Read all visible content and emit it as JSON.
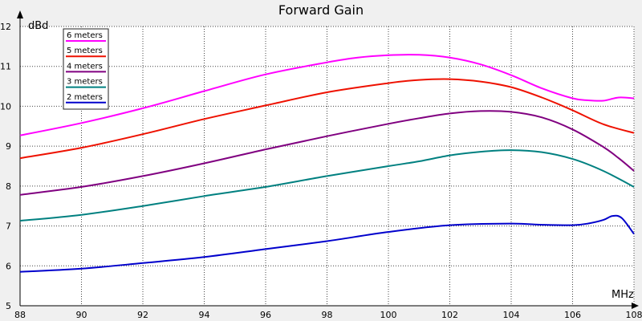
{
  "chart_data": {
    "type": "line",
    "title": "Forward Gain",
    "ylabel": "dBd",
    "xlabel": "MHz",
    "xlim": [
      88,
      108
    ],
    "ylim": [
      5,
      12
    ],
    "xticks": [
      88,
      90,
      92,
      94,
      96,
      98,
      100,
      102,
      104,
      106,
      108
    ],
    "yticks": [
      5,
      6,
      7,
      8,
      9,
      10,
      11,
      12
    ],
    "grid": true,
    "legend_position": "top-left",
    "series": [
      {
        "name": "6 meters",
        "color": "#ff00ff",
        "x": [
          88,
          90,
          92,
          94,
          96,
          98,
          99,
          100,
          101,
          102,
          103,
          104,
          105,
          106,
          106.5,
          107,
          107.5,
          108
        ],
        "y": [
          9.27,
          9.58,
          9.95,
          10.38,
          10.8,
          11.1,
          11.22,
          11.28,
          11.29,
          11.22,
          11.05,
          10.78,
          10.45,
          10.2,
          10.15,
          10.14,
          10.22,
          10.2
        ]
      },
      {
        "name": "5 meters",
        "color": "#ee1100",
        "x": [
          88,
          90,
          92,
          94,
          96,
          98,
          100,
          101,
          102,
          103,
          104,
          105,
          106,
          107,
          108
        ],
        "y": [
          8.7,
          8.96,
          9.3,
          9.68,
          10.02,
          10.35,
          10.58,
          10.66,
          10.68,
          10.62,
          10.48,
          10.22,
          9.9,
          9.55,
          9.33
        ]
      },
      {
        "name": "4 meters",
        "color": "#800080",
        "x": [
          88,
          90,
          92,
          94,
          96,
          98,
          100,
          101,
          102,
          103,
          104,
          105,
          106,
          107,
          107.5,
          108
        ],
        "y": [
          7.78,
          7.98,
          8.25,
          8.57,
          8.92,
          9.25,
          9.56,
          9.7,
          9.82,
          9.88,
          9.86,
          9.72,
          9.42,
          8.98,
          8.7,
          8.38
        ]
      },
      {
        "name": "3 meters",
        "color": "#008080",
        "x": [
          88,
          90,
          92,
          94,
          96,
          98,
          100,
          101,
          102,
          103,
          104,
          105,
          106,
          107,
          108
        ],
        "y": [
          7.13,
          7.28,
          7.5,
          7.75,
          7.98,
          8.25,
          8.5,
          8.62,
          8.77,
          8.86,
          8.9,
          8.85,
          8.68,
          8.38,
          7.98
        ]
      },
      {
        "name": "2 meters",
        "color": "#0000cc",
        "x": [
          88,
          90,
          92,
          94,
          96,
          98,
          100,
          102,
          104,
          105,
          106,
          106.5,
          107,
          107.3,
          107.6,
          108
        ],
        "y": [
          5.85,
          5.93,
          6.07,
          6.22,
          6.42,
          6.62,
          6.85,
          7.02,
          7.06,
          7.03,
          7.02,
          7.06,
          7.15,
          7.25,
          7.2,
          6.8
        ]
      }
    ]
  }
}
